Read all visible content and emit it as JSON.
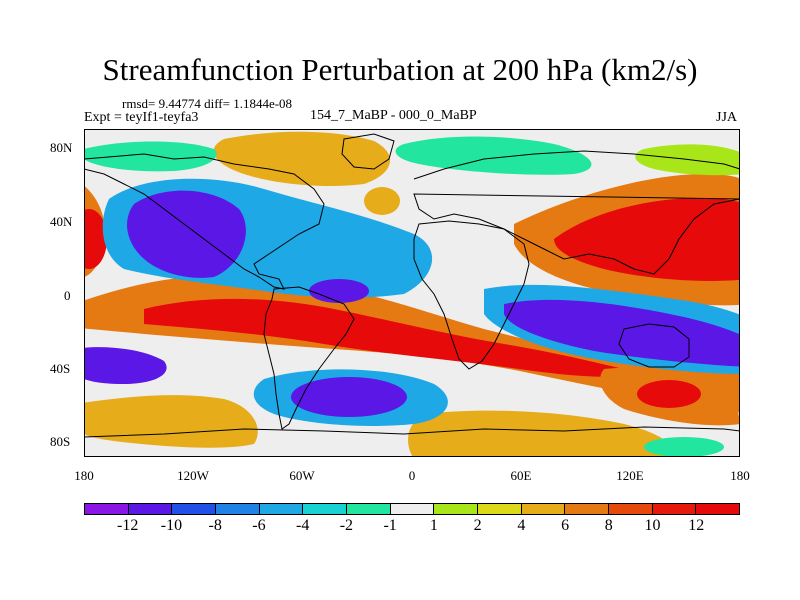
{
  "title": "Streamfunction Perturbation at 200 hPa (km2/s)",
  "stats": "rmsd= 9.44774  diff= 1.1844e-08",
  "left_label": "Expt = teyIf1-teyfa3",
  "center_label": "154_7_MaBP - 000_0_MaBP",
  "right_label": "JJA",
  "y_axis_labels": [
    "80N",
    "40N",
    "0",
    "40S",
    "80S"
  ],
  "x_axis_labels": [
    "180",
    "120W",
    "60W",
    "0",
    "60E",
    "120E",
    "180"
  ],
  "colorbar": {
    "labels": [
      "-12",
      "-10",
      "-8",
      "-6",
      "-4",
      "-2",
      "-1",
      "1",
      "2",
      "4",
      "6",
      "8",
      "10",
      "12"
    ],
    "colors": [
      "#8a16e6",
      "#5a17e6",
      "#2050e8",
      "#1f82e6",
      "#1fa8e6",
      "#19d2d2",
      "#22e6a0",
      "#eeeeee",
      "#a8e61a",
      "#dcd81a",
      "#e6ac1a",
      "#e67a12",
      "#e64a0a",
      "#e61a0a",
      "#e60a0a"
    ]
  },
  "field_colors": {
    "strong_positive": "#e60a0a",
    "positive": "#e67a12",
    "weak_positive": "#dcd81a",
    "neutral": "#eeeeee",
    "weak_negative": "#22e6a0",
    "negative": "#1fa8e6",
    "strong_negative": "#5a17e6"
  }
}
